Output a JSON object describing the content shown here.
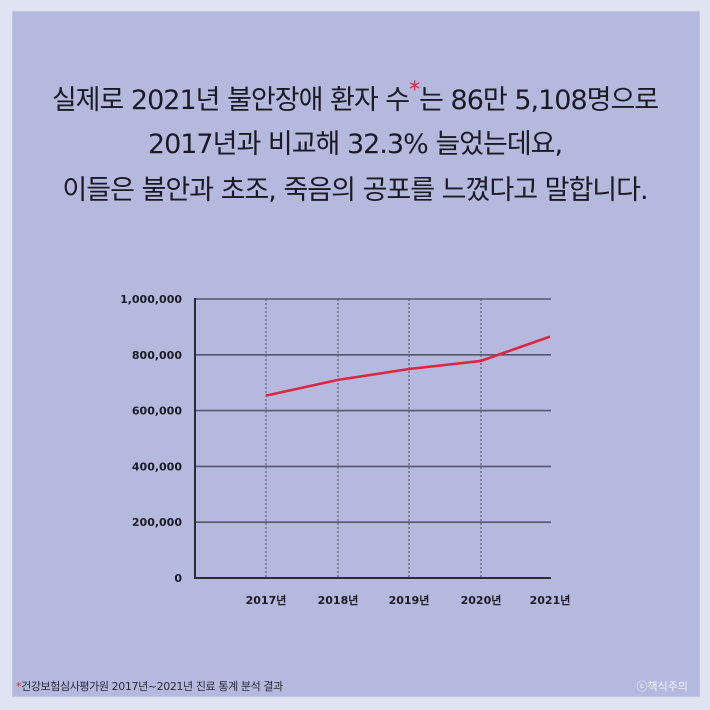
{
  "headline": {
    "line1_pre": "실제로 2021년 불안장애 환자 수",
    "line1_star": "*",
    "line1_post": "는 86만 5,108명으로",
    "line2": "2017년과 비교해 32.3% 늘었는데요,",
    "line3": "이들은 불안과 초조, 죽음의 공포를 느꼈다고 말합니다."
  },
  "chart_data": {
    "type": "line",
    "title": "",
    "xlabel": "",
    "ylabel": "",
    "categories": [
      "2017년",
      "2018년",
      "2019년",
      "2020년",
      "2021년"
    ],
    "series": [
      {
        "name": "불안장애 환자 수",
        "color": "#d9283f",
        "values": [
          653899,
          710000,
          749000,
          778000,
          865108
        ]
      }
    ],
    "ylim": [
      0,
      1000000
    ],
    "yticks": [
      "0",
      "200,000",
      "400,000",
      "600,000",
      "800,000",
      "1,000,000"
    ],
    "grid": {
      "horizontal": "solid",
      "vertical": "dotted"
    },
    "legend": "none"
  },
  "footer": {
    "footnote_marker": "*",
    "footnote": "건강보험심사평가원 2017년~2021년 진료 통계 분석 결과",
    "copyright": "ⓒ책식주의"
  },
  "colors": {
    "background": "#b5b9de",
    "border": "#dfe3f2",
    "line": "#d9283f",
    "text": "#1a1a22"
  }
}
